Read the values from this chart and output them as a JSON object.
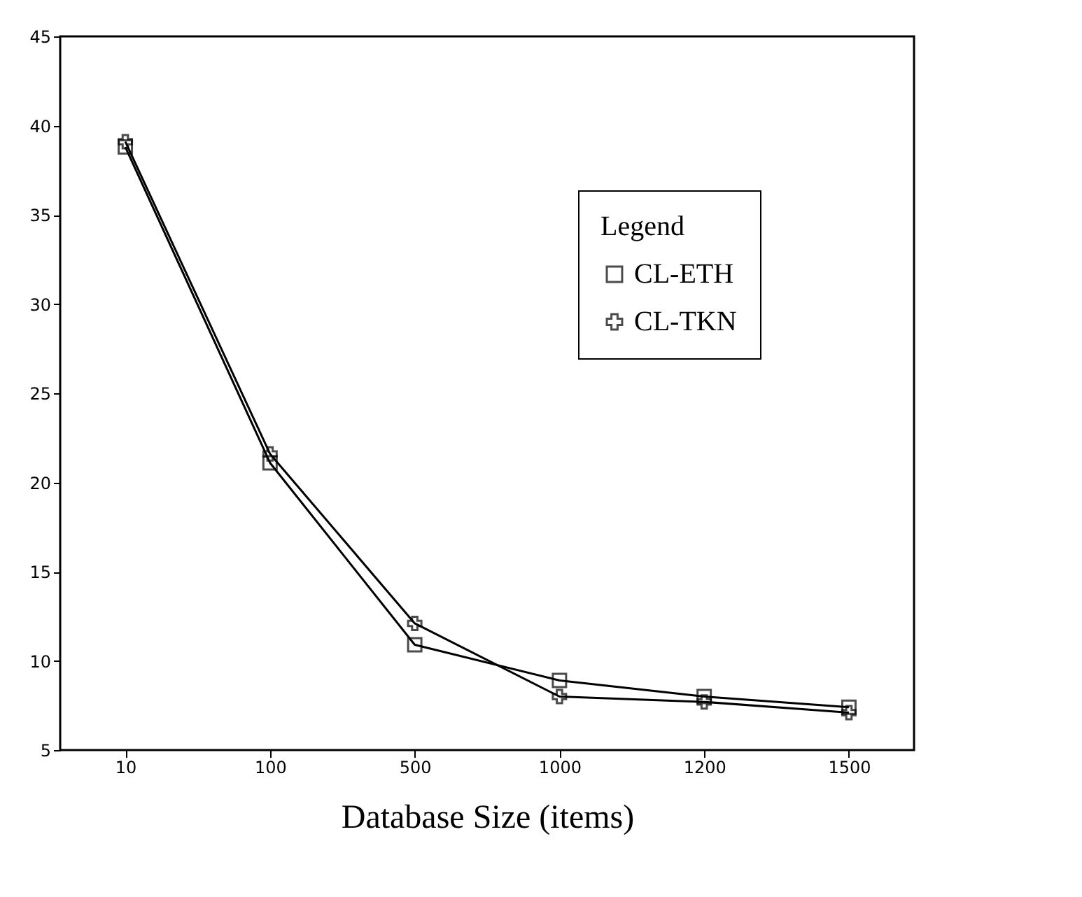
{
  "chart_data": {
    "type": "line",
    "xlabel": "Database Size (items)",
    "legend_title": "Legend",
    "categories": [
      "10",
      "100",
      "500",
      "1000",
      "1200",
      "1500"
    ],
    "series": [
      {
        "name": "CL-ETH",
        "color": "#000000",
        "marker": "square",
        "values": [
          38.8,
          21.1,
          10.9,
          8.9,
          8.0,
          7.4
        ]
      },
      {
        "name": "CL-TKN",
        "color": "#000000",
        "marker": "cross",
        "values": [
          39.1,
          21.6,
          12.1,
          8.0,
          7.7,
          7.1
        ]
      }
    ],
    "ylim": [
      5,
      45
    ],
    "yticks": [
      5,
      10,
      15,
      20,
      25,
      30,
      35,
      40,
      45
    ],
    "grid": false,
    "legend": "top right",
    "line_style": "solid"
  }
}
